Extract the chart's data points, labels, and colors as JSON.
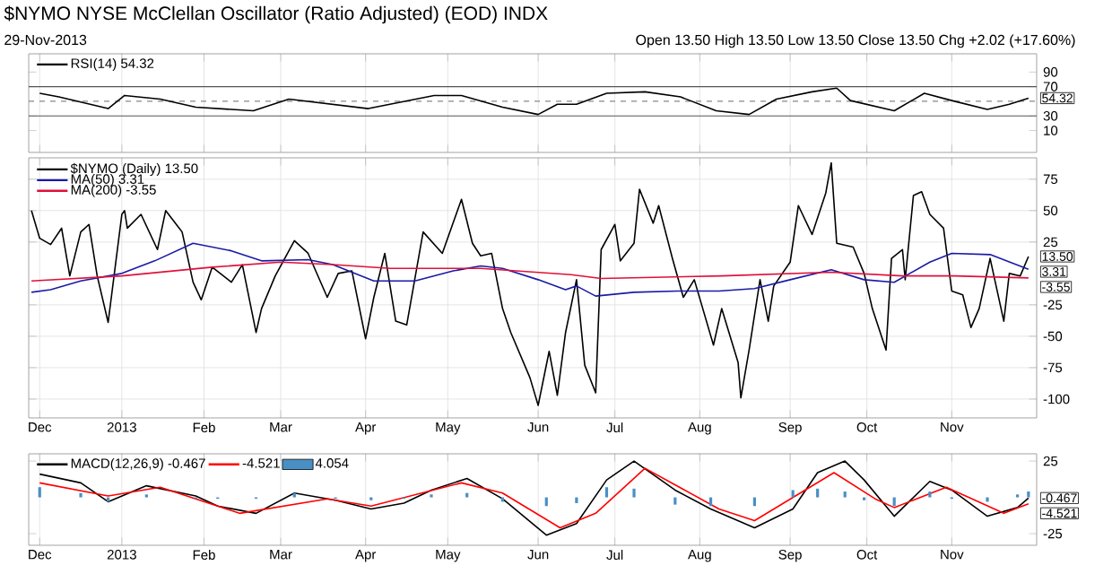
{
  "chart_data": [
    {
      "type": "line",
      "title": "$NYMO NYSE McClellan Oscillator (Ratio Adjusted) (EOD) INDX",
      "subtitle": "29-Nov-2013",
      "annotations": [
        "Open 13.50 High 13.50 Low 13.50 Close 13.50 Chg +2.02 (+17.60%)",
        {
          "text": "54.32",
          "x": "2013-11-29",
          "y": 54.32
        }
      ],
      "xlim": [
        "2012-11-29",
        "2013-12-02"
      ],
      "xticks": [
        {
          "value": "2012-12-03",
          "label": null
        },
        {
          "value": "2013-01-02",
          "label": null
        },
        {
          "value": "2013-02-01",
          "label": null
        },
        {
          "value": "2013-03-01",
          "label": null
        },
        {
          "value": "2013-04-01",
          "label": null
        },
        {
          "value": "2013-05-01",
          "label": null
        },
        {
          "value": "2013-06-03",
          "label": null
        },
        {
          "value": "2013-07-01",
          "label": null
        },
        {
          "value": "2013-08-01",
          "label": null
        },
        {
          "value": "2013-09-03",
          "label": null
        },
        {
          "value": "2013-10-01",
          "label": null
        },
        {
          "value": "2013-11-01",
          "label": null
        }
      ],
      "ylim": [
        -20,
        115
      ],
      "yticks": [
        10,
        30,
        70,
        90
      ],
      "tick_labels": "y",
      "grid": "x",
      "legend": "top left",
      "ref_lines": [
        {
          "axis": "y",
          "value": 30,
          "color": "#555555"
        },
        {
          "axis": "y",
          "value": 70,
          "color": "#555555"
        },
        {
          "axis": "y",
          "value": 50,
          "color": "#888888",
          "line_style": "dashed"
        }
      ],
      "series": [
        {
          "name": "RSI(14) 54.32",
          "color": "#000000",
          "x": [
            "2012-12-03",
            "2012-12-10",
            "2012-12-28",
            "2013-01-03",
            "2013-01-16",
            "2013-01-29",
            "2013-02-19",
            "2013-03-04",
            "2013-04-02",
            "2013-04-26",
            "2013-05-06",
            "2013-05-21",
            "2013-06-03",
            "2013-06-10",
            "2013-06-17",
            "2013-06-28",
            "2013-07-12",
            "2013-07-25",
            "2013-08-07",
            "2013-08-19",
            "2013-08-29",
            "2013-09-11",
            "2013-09-20",
            "2013-09-25",
            "2013-10-11",
            "2013-10-22",
            "2013-11-01",
            "2013-11-14",
            "2013-11-22",
            "2013-11-29"
          ],
          "values": [
            61,
            56,
            40,
            58,
            53,
            42,
            37,
            53,
            40,
            58,
            58,
            42,
            32,
            46,
            46,
            61,
            63,
            56,
            37,
            32,
            53,
            63,
            68,
            51,
            37,
            61,
            51,
            39,
            46,
            54.32
          ]
        }
      ]
    },
    {
      "type": "line",
      "annotations": [
        {
          "text": "13.50",
          "x": "2013-11-29",
          "y": 13.5
        },
        {
          "text": "3.31",
          "x": "2013-11-29",
          "y": 3.31
        },
        {
          "text": "-3.55",
          "x": "2013-11-29",
          "y": -3.55
        }
      ],
      "xlim": [
        "2012-11-29",
        "2013-12-02"
      ],
      "xticks": [
        {
          "value": "2012-12-03",
          "label": "Dec"
        },
        {
          "value": "2013-01-02",
          "label": "2013"
        },
        {
          "value": "2013-02-01",
          "label": "Feb"
        },
        {
          "value": "2013-03-01",
          "label": "Mar"
        },
        {
          "value": "2013-04-01",
          "label": "Apr"
        },
        {
          "value": "2013-05-01",
          "label": "May"
        },
        {
          "value": "2013-06-03",
          "label": "Jun"
        },
        {
          "value": "2013-07-01",
          "label": "Jul"
        },
        {
          "value": "2013-08-01",
          "label": "Aug"
        },
        {
          "value": "2013-09-03",
          "label": "Sep"
        },
        {
          "value": "2013-10-01",
          "label": "Oct"
        },
        {
          "value": "2013-11-01",
          "label": "Nov"
        }
      ],
      "ylim": [
        -115,
        92
      ],
      "yticks": [
        -100,
        -75,
        -50,
        -25,
        25,
        50,
        75
      ],
      "grid": true,
      "legend": "top left",
      "series": [
        {
          "name": "$NYMO (Daily) 13.50",
          "color": "#000000",
          "x": [
            "2012-11-30",
            "2012-12-03",
            "2012-12-07",
            "2012-12-11",
            "2012-12-14",
            "2012-12-18",
            "2012-12-21",
            "2012-12-24",
            "2012-12-28",
            "2013-01-02",
            "2013-01-03",
            "2013-01-04",
            "2013-01-09",
            "2013-01-15",
            "2013-01-18",
            "2013-01-24",
            "2013-01-28",
            "2013-01-31",
            "2013-02-04",
            "2013-02-11",
            "2013-02-15",
            "2013-02-20",
            "2013-02-22",
            "2013-02-27",
            "2013-03-06",
            "2013-03-11",
            "2013-03-18",
            "2013-03-22",
            "2013-03-27",
            "2013-04-01",
            "2013-04-04",
            "2013-04-08",
            "2013-04-12",
            "2013-04-16",
            "2013-04-22",
            "2013-04-29",
            "2013-05-06",
            "2013-05-10",
            "2013-05-13",
            "2013-05-17",
            "2013-05-21",
            "2013-05-24",
            "2013-05-31",
            "2013-06-03",
            "2013-06-07",
            "2013-06-10",
            "2013-06-13",
            "2013-06-17",
            "2013-06-20",
            "2013-06-24",
            "2013-06-26",
            "2013-07-01",
            "2013-07-03",
            "2013-07-08",
            "2013-07-10",
            "2013-07-15",
            "2013-07-17",
            "2013-07-22",
            "2013-07-26",
            "2013-07-30",
            "2013-08-06",
            "2013-08-09",
            "2013-08-15",
            "2013-08-16",
            "2013-08-19",
            "2013-08-23",
            "2013-08-26",
            "2013-08-28",
            "2013-09-03",
            "2013-09-06",
            "2013-09-11",
            "2013-09-16",
            "2013-09-18",
            "2013-09-20",
            "2013-09-26",
            "2013-09-30",
            "2013-10-03",
            "2013-10-08",
            "2013-10-10",
            "2013-10-14",
            "2013-10-15",
            "2013-10-18",
            "2013-10-21",
            "2013-10-24",
            "2013-10-29",
            "2013-11-01",
            "2013-11-05",
            "2013-11-08",
            "2013-11-11",
            "2013-11-15",
            "2013-11-20",
            "2013-11-22",
            "2013-11-26",
            "2013-11-29"
          ],
          "values": [
            50,
            28,
            23,
            36,
            -2,
            33,
            39,
            -2,
            -39,
            47,
            50,
            36,
            47,
            19,
            50,
            33,
            -7,
            -21,
            5,
            -7,
            7,
            -47,
            -28,
            -2,
            26,
            16,
            -19,
            0,
            2,
            -52,
            -19,
            16,
            -38,
            -41,
            33,
            16,
            59,
            24,
            14,
            16,
            -28,
            -47,
            -83,
            -105,
            -62,
            -97,
            -47,
            -5,
            -73,
            -95,
            19,
            39,
            10,
            24,
            67,
            40,
            54,
            12,
            -19,
            -5,
            -57,
            -28,
            -71,
            -99,
            -61,
            -5,
            -38,
            -10,
            9,
            54,
            31,
            64,
            88,
            24,
            21,
            0,
            -28,
            -61,
            12,
            19,
            -5,
            62,
            65,
            47,
            36,
            -14,
            -17,
            -43,
            -28,
            12,
            -38,
            0,
            -2,
            13.5
          ]
        },
        {
          "name": "MA(50) 3.31",
          "color": "#1a1aa6",
          "x": [
            "2012-11-30",
            "2012-12-07",
            "2012-12-18",
            "2013-01-02",
            "2013-01-14",
            "2013-01-28",
            "2013-02-11",
            "2013-02-22",
            "2013-03-11",
            "2013-03-20",
            "2013-04-04",
            "2013-04-19",
            "2013-05-03",
            "2013-05-13",
            "2013-05-21",
            "2013-06-03",
            "2013-06-13",
            "2013-06-17",
            "2013-06-24",
            "2013-07-08",
            "2013-07-24",
            "2013-08-08",
            "2013-08-21",
            "2013-09-03",
            "2013-09-18",
            "2013-09-30",
            "2013-10-11",
            "2013-10-24",
            "2013-11-01",
            "2013-11-15",
            "2013-11-29"
          ],
          "values": [
            -15,
            -13,
            -6,
            0,
            10,
            24,
            18,
            10,
            11,
            7,
            -6,
            -6,
            2,
            6,
            4,
            -5,
            -13,
            -10,
            -18,
            -15,
            -14,
            -14,
            -12,
            -5,
            3,
            -5,
            -7,
            9,
            16,
            15,
            3.31
          ]
        },
        {
          "name": "MA(200) -3.55",
          "color": "#e0103a",
          "x": [
            "2012-11-30",
            "2013-01-02",
            "2013-02-04",
            "2013-03-01",
            "2013-03-20",
            "2013-04-10",
            "2013-05-13",
            "2013-06-15",
            "2013-06-26",
            "2013-08-09",
            "2013-09-18",
            "2013-10-14",
            "2013-11-02",
            "2013-11-29"
          ],
          "values": [
            -6,
            -2,
            5,
            9,
            7,
            4,
            4,
            -1,
            -4,
            -2,
            1,
            -2,
            -2,
            -3.55
          ]
        }
      ]
    },
    {
      "type": "line",
      "annotations": [
        {
          "text": "-0.467",
          "x": "2013-11-29",
          "y": -0.467
        },
        {
          "text": "-4.521",
          "x": "2013-11-29",
          "y": -4.521
        }
      ],
      "xlim": [
        "2012-11-29",
        "2013-12-02"
      ],
      "xticks": [
        {
          "value": "2012-12-03",
          "label": "Dec"
        },
        {
          "value": "2013-01-02",
          "label": "2013"
        },
        {
          "value": "2013-02-01",
          "label": "Feb"
        },
        {
          "value": "2013-03-01",
          "label": "Mar"
        },
        {
          "value": "2013-04-01",
          "label": "Apr"
        },
        {
          "value": "2013-05-01",
          "label": "May"
        },
        {
          "value": "2013-06-03",
          "label": "Jun"
        },
        {
          "value": "2013-07-01",
          "label": "Jul"
        },
        {
          "value": "2013-08-01",
          "label": "Aug"
        },
        {
          "value": "2013-09-03",
          "label": "Sep"
        },
        {
          "value": "2013-10-01",
          "label": "Oct"
        },
        {
          "value": "2013-11-01",
          "label": "Nov"
        }
      ],
      "ylim": [
        -33,
        30
      ],
      "yticks": [
        -25,
        25
      ],
      "grid": "x",
      "legend": "top left",
      "series": [
        {
          "name": "MACD(12,26,9) -0.467",
          "color": "#000000",
          "x": [
            "2012-12-03",
            "2012-12-18",
            "2012-12-28",
            "2013-01-11",
            "2013-01-29",
            "2013-02-06",
            "2013-02-20",
            "2013-03-06",
            "2013-03-21",
            "2013-04-03",
            "2013-04-15",
            "2013-04-25",
            "2013-05-08",
            "2013-05-21",
            "2013-06-06",
            "2013-06-17",
            "2013-06-28",
            "2013-07-08",
            "2013-07-23",
            "2013-08-05",
            "2013-08-21",
            "2013-09-04",
            "2013-09-13",
            "2013-09-23",
            "2013-09-30",
            "2013-10-11",
            "2013-10-24",
            "2013-11-01",
            "2013-11-14",
            "2013-11-25",
            "2013-11-29"
          ],
          "values": [
            16,
            10,
            -3,
            8,
            1,
            -6,
            -11,
            3,
            -2,
            -8,
            -4,
            5,
            13,
            -1,
            -26,
            -18,
            12,
            25,
            5,
            -8,
            -21,
            -8,
            17,
            25,
            12,
            -13,
            11,
            5,
            -13,
            -7,
            -0.467
          ]
        },
        {
          "name": "-4.521",
          "color": "#ff0000",
          "x": [
            "2012-12-03",
            "2012-12-28",
            "2013-01-16",
            "2013-02-14",
            "2013-03-18",
            "2013-04-03",
            "2013-05-06",
            "2013-05-21",
            "2013-06-11",
            "2013-06-24",
            "2013-07-12",
            "2013-08-08",
            "2013-08-21",
            "2013-09-19",
            "2013-10-04",
            "2013-10-11",
            "2013-10-30",
            "2013-11-20",
            "2013-11-29"
          ],
          "values": [
            10,
            1,
            7,
            -11,
            -1,
            -6,
            10,
            3,
            -21,
            -11,
            20,
            -8,
            -16,
            17,
            -1,
            -7,
            7,
            -11,
            -4.521
          ]
        },
        {
          "name": "4.054",
          "type": "bar",
          "color": "#4a8fc4",
          "x": [
            "2012-12-03",
            "2012-12-18",
            "2012-12-28",
            "2013-01-11",
            "2013-01-29",
            "2013-02-06",
            "2013-02-20",
            "2013-03-06",
            "2013-03-21",
            "2013-04-03",
            "2013-04-15",
            "2013-04-25",
            "2013-05-08",
            "2013-05-21",
            "2013-06-06",
            "2013-06-17",
            "2013-06-28",
            "2013-07-08",
            "2013-07-23",
            "2013-08-05",
            "2013-08-21",
            "2013-09-04",
            "2013-09-13",
            "2013-09-23",
            "2013-09-30",
            "2013-10-11",
            "2013-10-24",
            "2013-11-01",
            "2013-11-14",
            "2013-11-25",
            "2013-11-29"
          ],
          "values": [
            7,
            3,
            -3,
            2,
            -1,
            -1,
            -1,
            3,
            -1,
            -2,
            -1,
            2,
            3,
            -3,
            -6,
            -4,
            7,
            6,
            -5,
            -6,
            -6,
            5,
            6,
            4,
            -2,
            -6,
            4,
            -1,
            -3,
            2,
            4.054
          ]
        }
      ]
    }
  ]
}
